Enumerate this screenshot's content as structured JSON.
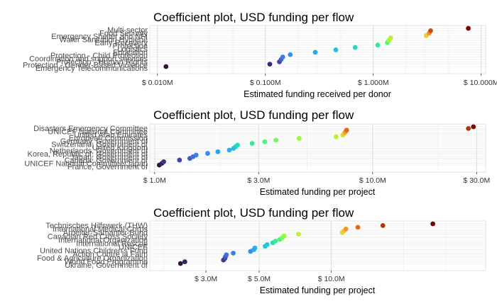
{
  "chart_data": [
    {
      "type": "scatter",
      "title": "Coefficient plot, USD funding per flow",
      "xlabel": "Estimated funding received per donor",
      "ylabel": "",
      "x_scale": "log",
      "x_unit": "USD millions",
      "xlim": [
        0.0085,
        11
      ],
      "xticks": [
        0.01,
        0.1,
        1,
        10
      ],
      "xtick_labels": [
        "$ 0.010M",
        "$ 0.100M",
        "$ 1.000M",
        "$ 10.000M"
      ],
      "grid": true,
      "legend": "none",
      "color_scale": "turbo",
      "y_labels_visible": [
        "Multi-sector",
        "Food Security",
        "Emergency Shelter and NFI",
        "Water Sanitation Hygiene",
        "Early Recovery",
        "Protection",
        "Logistics",
        "Education",
        "Protection - Child Protection",
        "Coordination and support services",
        "Protection - Human Rights",
        "Protection - Gender-Based Violence",
        "Emergency Telecommunications"
      ],
      "series": [
        {
          "name": "",
          "x": [
            0.012,
            0.11,
            0.135,
            0.14,
            0.145,
            0.17,
            0.29,
            0.45,
            0.68,
            1.1,
            1.35,
            1.4,
            1.45,
            3.1,
            3.3,
            3.4,
            7.6
          ]
        }
      ]
    },
    {
      "type": "scatter",
      "title": "Coefficient plot, USD funding per flow",
      "xlabel": "Estimated funding per project",
      "ylabel": "",
      "x_scale": "log",
      "x_unit": "USD millions",
      "xlim": [
        0.95,
        33
      ],
      "xticks": [
        1,
        3,
        10,
        30
      ],
      "xtick_labels": [
        "$ 1.0M",
        "$ 3.0M",
        "$ 10.0M",
        "$ 30.0M"
      ],
      "grid": true,
      "legend": "none",
      "color_scale": "turbo",
      "y_labels_visible": [
        "Disasters Emergency Committee",
        "UNICEF National Committee",
        "United Arab Emirates",
        "European Commission",
        "Germany, Government of",
        "Switzerland, Government of",
        "United Kingdom",
        "Netherlands, Government of",
        "Korea, Republic of, Government of",
        "Japan, Government of",
        "Canada, Government of",
        "UNICEF National Committee/Japan",
        "France, Government of"
      ],
      "series": [
        {
          "name": "",
          "x": [
            1.05,
            1.08,
            1.1,
            1.3,
            1.45,
            1.5,
            1.55,
            1.75,
            1.95,
            2.2,
            2.3,
            2.35,
            2.4,
            2.8,
            3.2,
            3.6,
            4.6,
            6.8,
            7.3,
            7.4,
            7.5,
            7.6,
            27.5,
            29
          ]
        }
      ]
    },
    {
      "type": "scatter",
      "title": "Coefficient plot, USD funding per flow",
      "xlabel": "Estimated funding per project",
      "ylabel": "",
      "x_scale": "log",
      "x_unit": "USD millions",
      "xlim": [
        1.75,
        44
      ],
      "xticks": [
        3,
        5,
        10
      ],
      "xtick_labels": [
        "$ 3.0M",
        "$ 5.0M",
        "$ 10.0M"
      ],
      "grid": true,
      "legend": "none",
      "color_scale": "turbo",
      "y_labels_visible": [
        "Technisches Hilfswerk (THW)",
        "International Medical Corps",
        "Arbeiter-Samariter-Bund",
        "Canadian Red Cross Society",
        "International Organization",
        "International Rescue",
        "UNICEF",
        "United Nations Children's Fund",
        "Action Contre la Faim",
        "Food & Agriculture Organization",
        "World Food Programme",
        "Ukraine, Government of"
      ],
      "series": [
        {
          "name": "",
          "x": [
            2.35,
            2.45,
            3.55,
            3.6,
            3.62,
            3.65,
            3.9,
            4.6,
            4.75,
            4.8,
            5.3,
            5.4,
            5.7,
            5.85,
            6.1,
            6.25,
            6.35,
            7.3,
            11.1,
            11.3,
            11.5,
            12.9,
            16.4,
            26.5
          ]
        }
      ]
    }
  ]
}
